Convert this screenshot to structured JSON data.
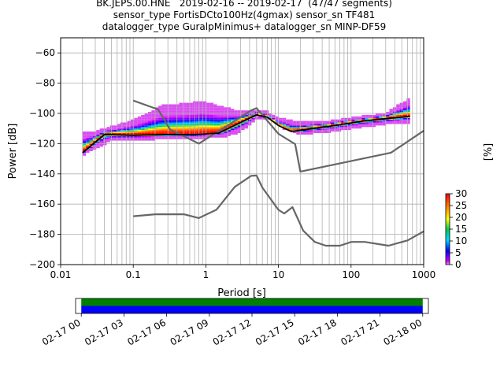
{
  "title_lines": [
    "BK.JEPS.00.HNE   2019-02-16 -- 2019-02-17  (47/47 segments)",
    "sensor_type FortisDCto100Hz(4gmax) sensor_sn TF481",
    "datalogger_type GuralpMinimus+ datalogger_sn MINP-DF59"
  ],
  "chart_data": [
    {
      "type": "heatmap",
      "xlabel": "Period [s]",
      "ylabel": "Power [dB]",
      "x_scale": "log",
      "xlim": [
        0.01,
        1000
      ],
      "ylim": [
        -200,
        -50
      ],
      "x_ticks": [
        0.01,
        0.1,
        1,
        10,
        100,
        1000
      ],
      "x_tick_labels": [
        "0.01",
        "0.1",
        "1",
        "10",
        "100",
        "1000"
      ],
      "y_ticks": [
        -200,
        -180,
        -160,
        -140,
        -120,
        -100,
        -80,
        -60
      ],
      "y_tick_labels": [
        "−200",
        "−180",
        "−160",
        "−140",
        "−120",
        "−100",
        "−80",
        "−60"
      ],
      "grid": true,
      "colorbar": {
        "label": "[%]",
        "range": [
          0,
          30
        ],
        "ticks": [
          0,
          5,
          10,
          15,
          20,
          25,
          30
        ],
        "tick_labels": [
          "0",
          "5",
          "10",
          "15",
          "20",
          "25",
          "30"
        ],
        "colormap": "pqlx"
      },
      "noise_models": [
        {
          "name": "NHNM",
          "color": "#666666",
          "points": [
            [
              0.1,
              -91.5
            ],
            [
              0.22,
              -97.4
            ],
            [
              0.32,
              -110.5
            ],
            [
              0.8,
              -120
            ],
            [
              2.5,
              -105
            ],
            [
              4.2,
              -98
            ],
            [
              5,
              -96.5
            ],
            [
              6,
              -101
            ],
            [
              10,
              -113.5
            ],
            [
              17,
              -120.3
            ],
            [
              20,
              -138.5
            ],
            [
              354,
              -126
            ],
            [
              1000,
              -111.5
            ]
          ]
        },
        {
          "name": "NLNM",
          "color": "#666666",
          "points": [
            [
              0.1,
              -168
            ],
            [
              0.2,
              -166.7
            ],
            [
              0.5,
              -166.7
            ],
            [
              0.8,
              -169.2
            ],
            [
              1.4,
              -163.7
            ],
            [
              2.5,
              -148.6
            ],
            [
              4.2,
              -141.3
            ],
            [
              5,
              -141.1
            ],
            [
              6,
              -149
            ],
            [
              10,
              -163.8
            ],
            [
              12,
              -166.2
            ],
            [
              15.6,
              -162
            ],
            [
              21.9,
              -177.5
            ],
            [
              31.6,
              -185
            ],
            [
              45,
              -187.5
            ],
            [
              70,
              -187.5
            ],
            [
              101,
              -185
            ],
            [
              154,
              -185
            ],
            [
              328,
              -187.5
            ],
            [
              600,
              -184
            ],
            [
              1000,
              -178
            ]
          ]
        }
      ],
      "mean_psd": {
        "color": "#000000",
        "points": [
          [
            0.02,
            -126
          ],
          [
            0.03,
            -119
          ],
          [
            0.04,
            -114
          ],
          [
            0.1,
            -114.5
          ],
          [
            0.3,
            -114
          ],
          [
            0.7,
            -114
          ],
          [
            1.5,
            -113
          ],
          [
            3,
            -106
          ],
          [
            5,
            -101
          ],
          [
            7,
            -102.5
          ],
          [
            10,
            -108
          ],
          [
            15,
            -112
          ],
          [
            30,
            -110
          ],
          [
            60,
            -108
          ],
          [
            150,
            -105
          ],
          [
            300,
            -103.5
          ],
          [
            650,
            -102
          ]
        ]
      },
      "percentile_spread": {
        "description_values_db": {
          "upper": [
            [
              0.03,
              -113
            ],
            [
              0.07,
              -108
            ],
            [
              0.12,
              -104
            ],
            [
              0.25,
              -96
            ],
            [
              0.6,
              -94.5
            ],
            [
              0.9,
              -93
            ],
            [
              1.5,
              -96
            ],
            [
              3,
              -100
            ],
            [
              5,
              -99
            ],
            [
              7,
              -100
            ],
            [
              10,
              -104
            ],
            [
              20,
              -107
            ],
            [
              50,
              -106
            ],
            [
              100,
              -104
            ],
            [
              300,
              -101
            ],
            [
              650,
              -91
            ]
          ],
          "lower": [
            [
              0.02,
              -128
            ],
            [
              0.03,
              -123
            ],
            [
              0.05,
              -118
            ],
            [
              0.2,
              -117
            ],
            [
              1,
              -116
            ],
            [
              2,
              -115
            ],
            [
              3,
              -112
            ],
            [
              5,
              -104
            ],
            [
              8,
              -104
            ],
            [
              12,
              -110
            ],
            [
              20,
              -114
            ],
            [
              50,
              -112
            ],
            [
              100,
              -110
            ],
            [
              300,
              -107
            ],
            [
              650,
              -106
            ]
          ]
        }
      }
    },
    {
      "type": "bar",
      "x_tick_labels": [
        "02-17 00",
        "02-17 03",
        "02-17 06",
        "02-17 09",
        "02-17 12",
        "02-17 15",
        "02-17 18",
        "02-17 21",
        "02-18 00"
      ],
      "x_range_hours": [
        -0.4,
        24.4
      ],
      "coverage": {
        "start_hours": 0,
        "end_hours": 24
      },
      "bands": [
        {
          "name": "data",
          "color": "#0000ff"
        },
        {
          "name": "psd",
          "color": "#008000"
        }
      ]
    }
  ]
}
